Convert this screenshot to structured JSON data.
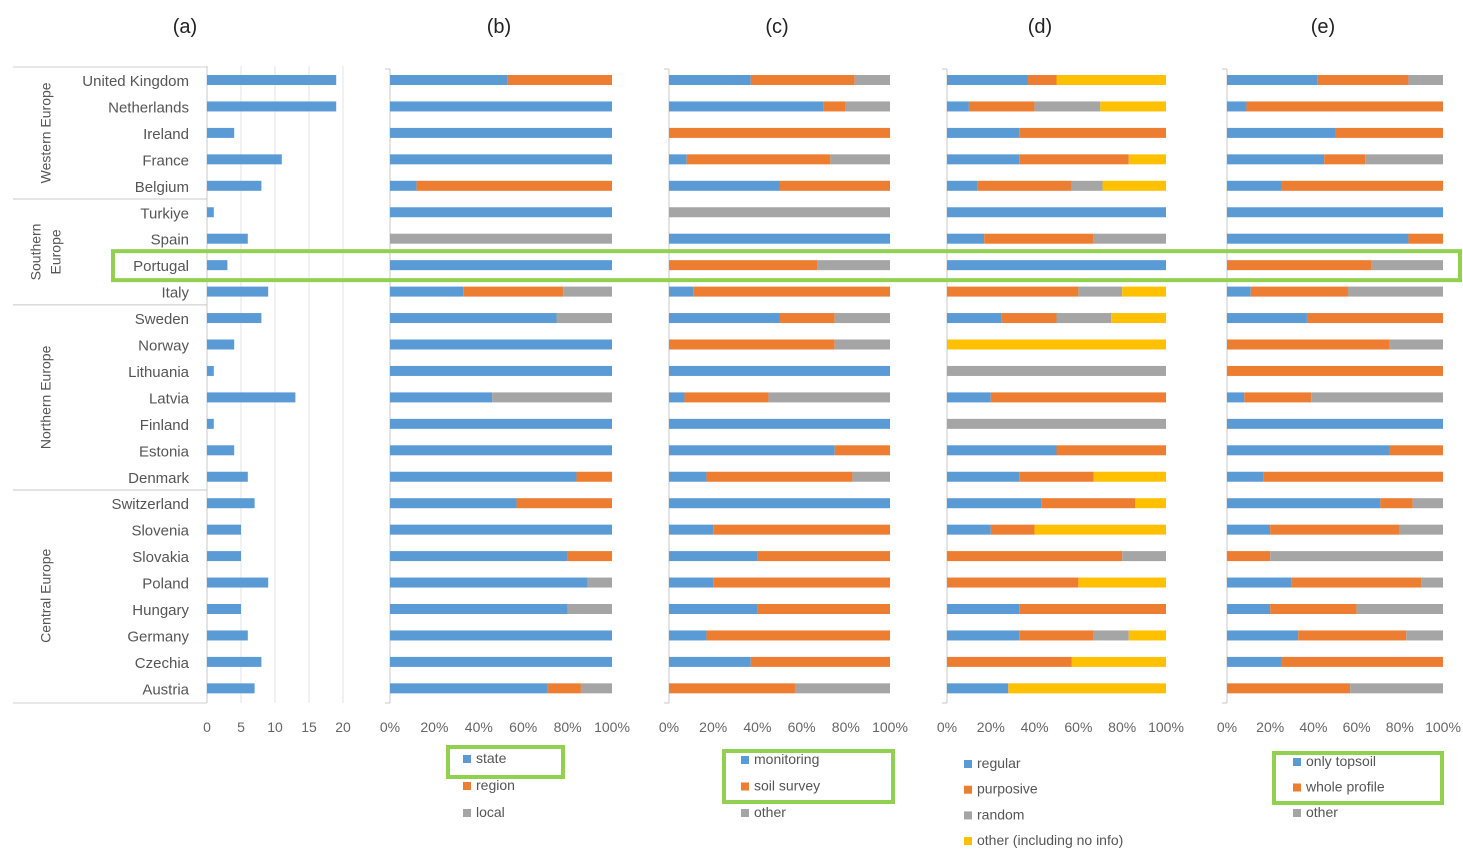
{
  "colors": {
    "blue": "#5b9bd5",
    "orange": "#ed7d31",
    "gray": "#a5a5a5",
    "yellow": "#ffc000",
    "highlight": "#92d050"
  },
  "chart_data": [
    {
      "id": "a",
      "panel_label": "(a)",
      "type": "bar",
      "orientation": "horizontal",
      "xlim": [
        0,
        20
      ],
      "ticks": [
        "0",
        "5",
        "10",
        "15",
        "20"
      ],
      "tick_values": [
        0,
        5,
        10,
        15,
        20
      ],
      "grid": true,
      "categories": [
        "United Kingdom",
        "Netherlands",
        "Ireland",
        "France",
        "Belgium",
        "Turkiye",
        "Spain",
        "Portugal",
        "Italy",
        "Sweden",
        "Norway",
        "Lithuania",
        "Latvia",
        "Finland",
        "Estonia",
        "Denmark",
        "Switzerland",
        "Slovenia",
        "Slovakia",
        "Poland",
        "Hungary",
        "Germany",
        "Czechia",
        "Austria"
      ],
      "regions": [
        {
          "label": "Western Europe",
          "start": 0,
          "end": 4
        },
        {
          "label": "Southern Europe",
          "lines": [
            "Southern",
            "Europe"
          ],
          "start": 5,
          "end": 8
        },
        {
          "label": "Northern Europe",
          "start": 9,
          "end": 15
        },
        {
          "label": "Central Europe",
          "start": 16,
          "end": 23
        }
      ],
      "values": [
        19,
        19,
        4,
        11,
        8,
        1,
        6,
        3,
        9,
        8,
        4,
        1,
        13,
        1,
        4,
        6,
        7,
        5,
        5,
        9,
        5,
        6,
        8,
        7
      ]
    },
    {
      "id": "b",
      "panel_label": "(b)",
      "type": "bar",
      "stacked": "percent",
      "ticks": [
        "0%",
        "20%",
        "40%",
        "60%",
        "80%",
        "100%"
      ],
      "legend_placement": "bottom",
      "legend": [
        "state",
        "region",
        "local"
      ],
      "legend_highlight": [
        0
      ],
      "series": [
        {
          "name": "state",
          "color": "blue",
          "values": [
            53,
            100,
            100,
            100,
            12,
            100,
            0,
            100,
            33,
            75,
            100,
            100,
            46,
            100,
            100,
            84,
            57,
            100,
            80,
            89,
            80,
            100,
            100,
            71
          ]
        },
        {
          "name": "region",
          "color": "orange",
          "values": [
            47,
            0,
            0,
            0,
            88,
            0,
            0,
            0,
            45,
            0,
            0,
            0,
            0,
            0,
            0,
            16,
            43,
            0,
            20,
            0,
            0,
            0,
            0,
            15
          ]
        },
        {
          "name": "local",
          "color": "gray",
          "values": [
            0,
            0,
            0,
            0,
            0,
            0,
            100,
            0,
            22,
            25,
            0,
            0,
            54,
            0,
            0,
            0,
            0,
            0,
            0,
            11,
            20,
            0,
            0,
            14
          ]
        }
      ]
    },
    {
      "id": "c",
      "panel_label": "(c)",
      "type": "bar",
      "stacked": "percent",
      "ticks": [
        "0%",
        "20%",
        "40%",
        "60%",
        "80%",
        "100%"
      ],
      "legend_placement": "bottom",
      "legend": [
        "monitoring",
        "soil survey",
        "other"
      ],
      "legend_highlight": [
        0,
        1
      ],
      "series": [
        {
          "name": "monitoring",
          "color": "blue",
          "values": [
            37,
            70,
            0,
            8,
            50,
            0,
            100,
            0,
            11,
            50,
            0,
            100,
            7,
            100,
            75,
            17,
            100,
            20,
            40,
            20,
            40,
            17,
            37,
            0
          ]
        },
        {
          "name": "soil survey",
          "color": "orange",
          "values": [
            47,
            10,
            100,
            65,
            50,
            0,
            0,
            67,
            89,
            25,
            75,
            0,
            38,
            0,
            25,
            66,
            0,
            80,
            60,
            80,
            60,
            83,
            63,
            57
          ]
        },
        {
          "name": "other",
          "color": "gray",
          "values": [
            16,
            20,
            0,
            27,
            0,
            100,
            0,
            33,
            0,
            25,
            25,
            0,
            55,
            0,
            0,
            17,
            0,
            0,
            0,
            0,
            0,
            0,
            0,
            43
          ]
        }
      ]
    },
    {
      "id": "d",
      "panel_label": "(d)",
      "type": "bar",
      "stacked": "percent",
      "ticks": [
        "0%",
        "20%",
        "40%",
        "60%",
        "80%",
        "100%"
      ],
      "legend_placement": "bottom",
      "legend": [
        "regular",
        "purposive",
        "random",
        "other (including no info)"
      ],
      "legend_highlight": [],
      "series": [
        {
          "name": "regular",
          "color": "blue",
          "values": [
            37,
            10,
            33,
            33,
            14,
            100,
            17,
            100,
            0,
            25,
            0,
            0,
            20,
            0,
            50,
            33,
            43,
            20,
            0,
            0,
            33,
            33,
            0,
            28
          ]
        },
        {
          "name": "purposive",
          "color": "orange",
          "values": [
            13,
            30,
            67,
            50,
            43,
            0,
            50,
            0,
            60,
            25,
            0,
            0,
            80,
            0,
            50,
            34,
            43,
            20,
            80,
            60,
            67,
            34,
            57,
            0
          ]
        },
        {
          "name": "random",
          "color": "gray",
          "values": [
            0,
            30,
            0,
            0,
            14,
            0,
            33,
            0,
            20,
            25,
            0,
            100,
            0,
            100,
            0,
            0,
            0,
            0,
            20,
            0,
            0,
            16,
            0,
            0
          ]
        },
        {
          "name": "other (including no info)",
          "color": "yellow",
          "values": [
            50,
            30,
            0,
            17,
            29,
            0,
            0,
            0,
            20,
            25,
            100,
            0,
            0,
            0,
            0,
            33,
            14,
            60,
            0,
            40,
            0,
            17,
            43,
            72
          ]
        }
      ]
    },
    {
      "id": "e",
      "panel_label": "(e)",
      "type": "bar",
      "stacked": "percent",
      "ticks": [
        "0%",
        "20%",
        "40%",
        "60%",
        "80%",
        "100%"
      ],
      "legend_placement": "bottom",
      "legend": [
        "only topsoil",
        "whole profile",
        "other"
      ],
      "legend_highlight": [
        0,
        1
      ],
      "series": [
        {
          "name": "only topsoil",
          "color": "blue",
          "values": [
            42,
            9,
            50,
            45,
            25,
            100,
            84,
            0,
            11,
            37,
            0,
            0,
            8,
            100,
            75,
            17,
            71,
            20,
            0,
            30,
            20,
            33,
            25,
            0
          ]
        },
        {
          "name": "whole profile",
          "color": "orange",
          "values": [
            42,
            91,
            50,
            19,
            75,
            0,
            16,
            67,
            45,
            63,
            75,
            100,
            31,
            0,
            25,
            83,
            15,
            60,
            20,
            60,
            40,
            50,
            75,
            57
          ]
        },
        {
          "name": "other",
          "color": "gray",
          "values": [
            16,
            0,
            0,
            36,
            0,
            0,
            0,
            33,
            44,
            0,
            25,
            0,
            61,
            0,
            0,
            0,
            14,
            20,
            80,
            10,
            40,
            17,
            0,
            43
          ]
        }
      ]
    }
  ],
  "highlight_row": "Portugal"
}
